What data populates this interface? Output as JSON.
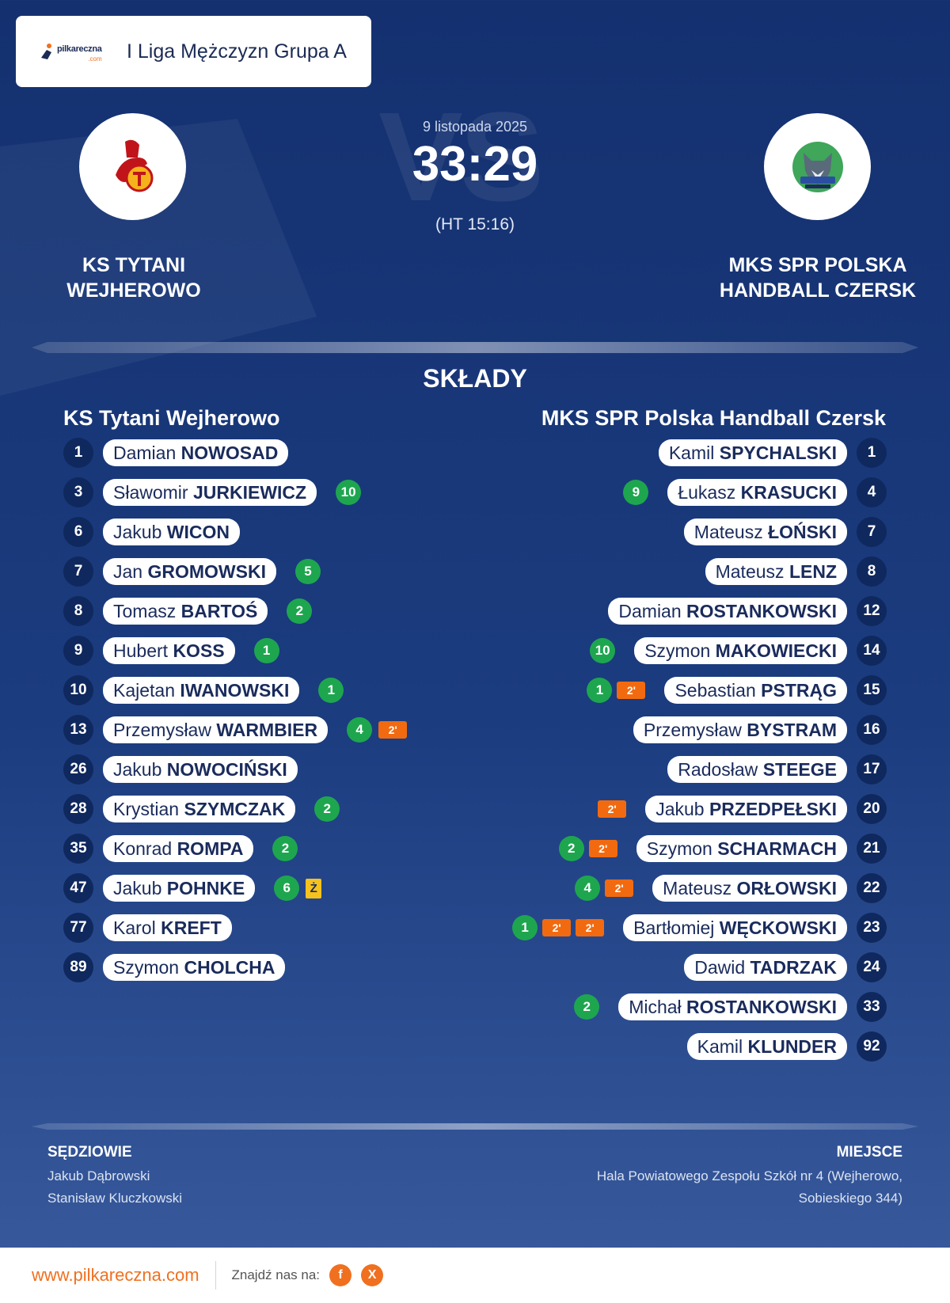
{
  "league": {
    "logo_text": "pilkareczna",
    "logo_com": ".com",
    "name": "I Liga Mężczyzn Grupa A"
  },
  "match": {
    "date": "9 listopada 2025",
    "score": "33:29",
    "halftime": "(HT 15:16)",
    "vs": "VS"
  },
  "home": {
    "name": "KS Tytani Wejherowo",
    "title_lines": [
      "KS TYTANI",
      "WEJHEROWO"
    ]
  },
  "away": {
    "name": "MKS SPR Polska Handball Czersk",
    "title_lines": [
      "MKS SPR POLSKA",
      "HANDBALL CZERSK"
    ]
  },
  "lineups_title": "SKŁADY",
  "home_players": [
    {
      "num": "1",
      "first": "Damian",
      "last": "NOWOSAD",
      "badges": []
    },
    {
      "num": "3",
      "first": "Sławomir",
      "last": "JURKIEWICZ",
      "badges": [
        {
          "t": "goal",
          "v": "10"
        }
      ]
    },
    {
      "num": "6",
      "first": "Jakub",
      "last": "WICON",
      "badges": []
    },
    {
      "num": "7",
      "first": "Jan",
      "last": "GROMOWSKI",
      "badges": [
        {
          "t": "goal",
          "v": "5"
        }
      ]
    },
    {
      "num": "8",
      "first": "Tomasz",
      "last": "BARTOŚ",
      "badges": [
        {
          "t": "goal",
          "v": "2"
        }
      ]
    },
    {
      "num": "9",
      "first": "Hubert",
      "last": "KOSS",
      "badges": [
        {
          "t": "goal",
          "v": "1"
        }
      ]
    },
    {
      "num": "10",
      "first": "Kajetan",
      "last": "IWANOWSKI",
      "badges": [
        {
          "t": "goal",
          "v": "1"
        }
      ]
    },
    {
      "num": "13",
      "first": "Przemysław",
      "last": "WARMBIER",
      "badges": [
        {
          "t": "goal",
          "v": "4"
        },
        {
          "t": "pen",
          "v": "2'"
        }
      ]
    },
    {
      "num": "26",
      "first": "Jakub",
      "last": "NOWOCIŃSKI",
      "badges": []
    },
    {
      "num": "28",
      "first": "Krystian",
      "last": "SZYMCZAK",
      "badges": [
        {
          "t": "goal",
          "v": "2"
        }
      ]
    },
    {
      "num": "35",
      "first": "Konrad",
      "last": "ROMPA",
      "badges": [
        {
          "t": "goal",
          "v": "2"
        }
      ]
    },
    {
      "num": "47",
      "first": "Jakub",
      "last": "POHNKE",
      "badges": [
        {
          "t": "goal",
          "v": "6"
        },
        {
          "t": "yc",
          "v": "Ż"
        }
      ]
    },
    {
      "num": "77",
      "first": "Karol",
      "last": "KREFT",
      "badges": []
    },
    {
      "num": "89",
      "first": "Szymon",
      "last": "CHOLCHA",
      "badges": []
    }
  ],
  "away_players": [
    {
      "num": "1",
      "first": "Kamil",
      "last": "SPYCHALSKI",
      "badges": []
    },
    {
      "num": "4",
      "first": "Łukasz",
      "last": "KRASUCKI",
      "badges": [
        {
          "t": "goal",
          "v": "9"
        }
      ]
    },
    {
      "num": "7",
      "first": "Mateusz",
      "last": "ŁOŃSKI",
      "badges": []
    },
    {
      "num": "8",
      "first": "Mateusz",
      "last": "LENZ",
      "badges": []
    },
    {
      "num": "12",
      "first": "Damian",
      "last": "ROSTANKOWSKI",
      "badges": []
    },
    {
      "num": "14",
      "first": "Szymon",
      "last": "MAKOWIECKI",
      "badges": [
        {
          "t": "goal",
          "v": "10"
        }
      ]
    },
    {
      "num": "15",
      "first": "Sebastian",
      "last": "PSTRĄG",
      "badges": [
        {
          "t": "pen",
          "v": "2'"
        },
        {
          "t": "goal",
          "v": "1"
        }
      ]
    },
    {
      "num": "16",
      "first": "Przemysław",
      "last": "BYSTRAM",
      "badges": []
    },
    {
      "num": "17",
      "first": "Radosław",
      "last": "STEEGE",
      "badges": []
    },
    {
      "num": "20",
      "first": "Jakub",
      "last": "PRZEDPEŁSKI",
      "badges": [
        {
          "t": "pen",
          "v": "2'"
        }
      ]
    },
    {
      "num": "21",
      "first": "Szymon",
      "last": "SCHARMACH",
      "badges": [
        {
          "t": "pen",
          "v": "2'"
        },
        {
          "t": "goal",
          "v": "2"
        }
      ]
    },
    {
      "num": "22",
      "first": "Mateusz",
      "last": "ORŁOWSKI",
      "badges": [
        {
          "t": "pen",
          "v": "2'"
        },
        {
          "t": "goal",
          "v": "4"
        }
      ]
    },
    {
      "num": "23",
      "first": "Bartłomiej",
      "last": "WĘCKOWSKI",
      "badges": [
        {
          "t": "pen",
          "v": "2'"
        },
        {
          "t": "pen",
          "v": "2'"
        },
        {
          "t": "goal",
          "v": "1"
        }
      ]
    },
    {
      "num": "24",
      "first": "Dawid",
      "last": "TADRZAK",
      "badges": []
    },
    {
      "num": "33",
      "first": "Michał",
      "last": "ROSTANKOWSKI",
      "badges": [
        {
          "t": "goal",
          "v": "2"
        }
      ]
    },
    {
      "num": "92",
      "first": "Kamil",
      "last": "KLUNDER",
      "badges": []
    }
  ],
  "referees": {
    "title": "SĘDZIOWIE",
    "names": [
      "Jakub Dąbrowski",
      "Stanisław Kluczkowski"
    ]
  },
  "venue": {
    "title": "MIEJSCE",
    "line1": "Hala Powiatowego Zespołu Szkół nr 4 (Wejherowo,",
    "line2": "Sobieskiego 344)"
  },
  "footer": {
    "site": "www.pilkareczna.com",
    "find": "Znajdź nas na:",
    "fb": "f",
    "x": "X"
  },
  "icons": {
    "home_logo": "tytani-shield-icon",
    "away_logo": "wolf-handball-icon"
  },
  "colors": {
    "bg": "#14306f",
    "goal": "#1ea64f",
    "penalty": "#f26a10",
    "yellow": "#f6c21c",
    "accent": "#f0701f"
  }
}
